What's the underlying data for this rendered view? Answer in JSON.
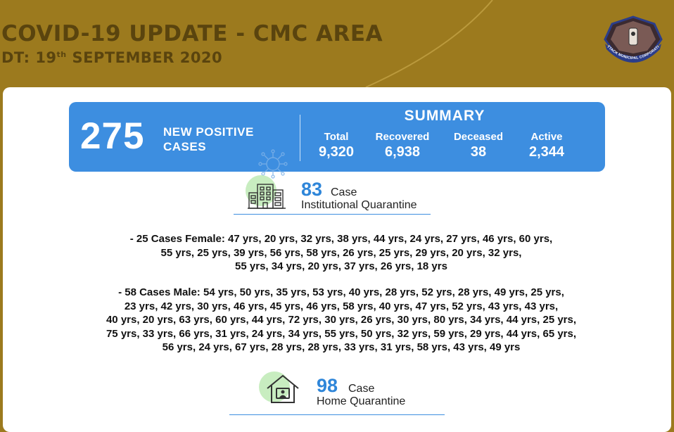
{
  "header": {
    "title": "COVID-19 UPDATE - CMC AREA",
    "date_prefix": "DT: 19",
    "date_sup": "th",
    "date_rest": " SEPTEMBER 2020",
    "logo_text": "CUTTACK MUNICIPAL CORPORATION"
  },
  "new_cases": {
    "count": "275",
    "label": "NEW POSITIVE CASES"
  },
  "summary": {
    "title": "SUMMARY",
    "total_label": "Total",
    "total_value": "9,320",
    "recovered_label": "Recovered",
    "recovered_value": "6,938",
    "deceased_label": "Deceased",
    "deceased_value": "38",
    "active_label": "Active",
    "active_value": "2,344"
  },
  "institutional": {
    "count": "83",
    "case_word": "Case",
    "label": "Institutional Quarantine",
    "icon": "building-icon"
  },
  "female_ages": {
    "lines": [
      "-   25 Cases Female: 47 yrs, 20 yrs, 32 yrs, 38 yrs, 44 yrs, 24 yrs, 27 yrs, 46 yrs, 60 yrs,",
      "55 yrs, 25 yrs, 39 yrs, 56 yrs, 58 yrs, 26 yrs, 25 yrs, 29 yrs, 20 yrs, 32 yrs,",
      "55 yrs, 34 yrs, 20 yrs, 37 yrs, 26 yrs, 18 yrs"
    ]
  },
  "male_ages": {
    "lines": [
      "-   58 Cases Male: 54 yrs, 50 yrs, 35 yrs, 53 yrs, 40 yrs, 28 yrs, 52 yrs, 28 yrs, 49 yrs, 25 yrs,",
      "23 yrs, 42 yrs, 30 yrs, 46 yrs, 45 yrs, 46 yrs, 58 yrs, 40 yrs, 47 yrs, 52 yrs, 43 yrs, 43 yrs,",
      "40 yrs, 20 yrs, 63 yrs, 60 yrs, 44 yrs, 72 yrs, 30 yrs, 26 yrs, 30 yrs, 80 yrs, 34 yrs, 44 yrs, 25 yrs,",
      "75 yrs, 33 yrs, 66 yrs, 31 yrs, 24 yrs, 34 yrs, 55 yrs, 50 yrs, 32 yrs, 59 yrs, 29 yrs, 44 yrs, 65 yrs,",
      "56 yrs, 24 yrs, 67 yrs, 28 yrs, 28 yrs, 33 yrs, 31 yrs, 58 yrs, 43 yrs, 49 yrs"
    ]
  },
  "home": {
    "count": "98",
    "case_word": "Case",
    "label": "Home Quarantine",
    "icon": "house-icon"
  },
  "colors": {
    "background": "#9c7a1e",
    "header_text": "#5a440e",
    "summary_blue": "#3d8ee0",
    "count_blue": "#2f86d9",
    "icon_circle": "#c8edc0"
  }
}
